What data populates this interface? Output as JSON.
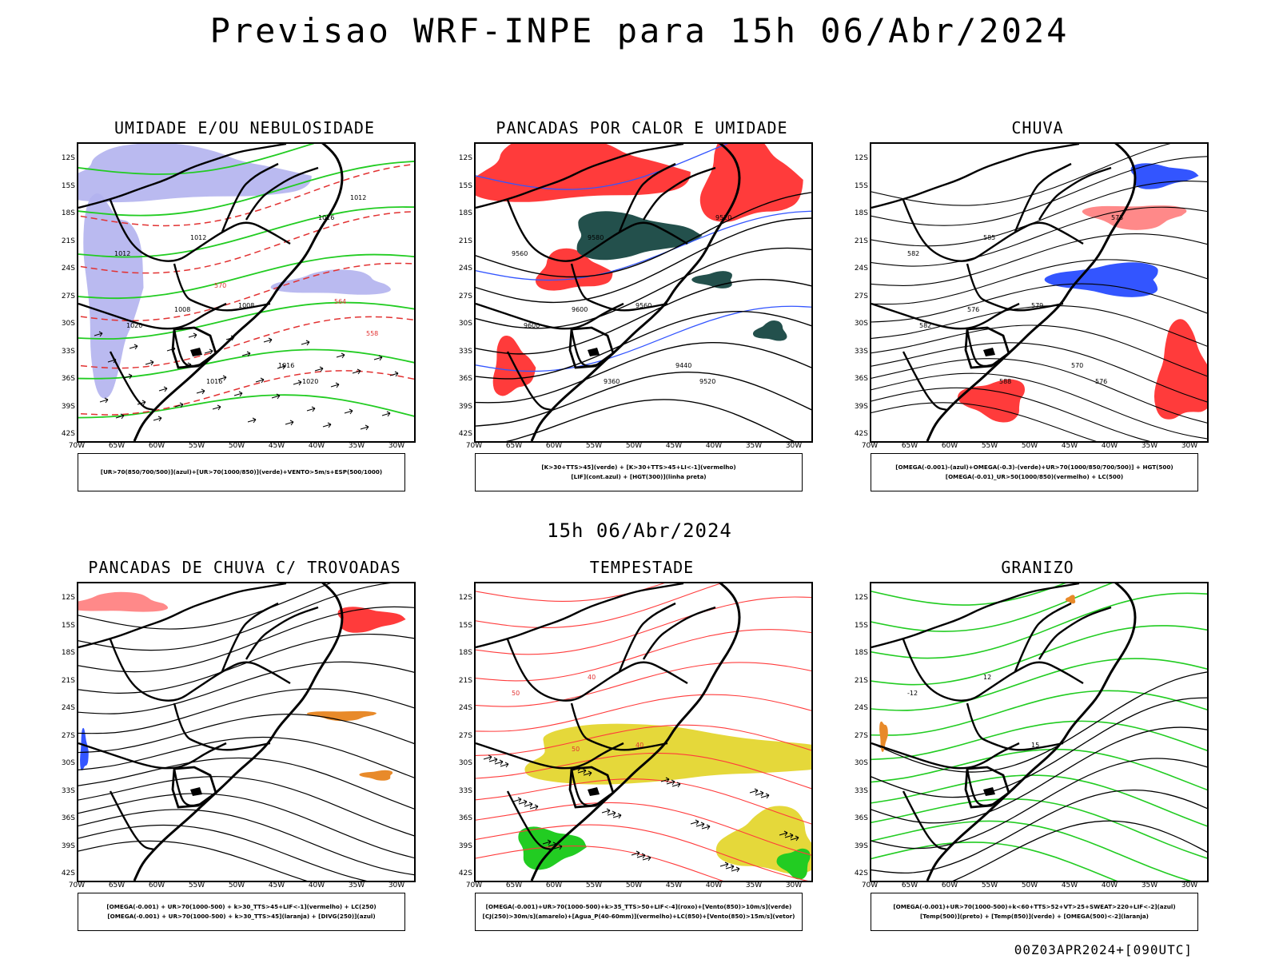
{
  "title": "Previsao WRF-INPE  para 15h 06/Abr/2024",
  "subtitle": "15h 06/Abr/2024",
  "footer": "00Z03APR2024+[090UTC]",
  "lat_labels": [
    "12S",
    "15S",
    "18S",
    "21S",
    "24S",
    "27S",
    "30S",
    "33S",
    "36S",
    "39S",
    "42S"
  ],
  "lon_labels": [
    "70W",
    "65W",
    "60W",
    "55W",
    "50W",
    "45W",
    "40W",
    "35W",
    "30W"
  ],
  "panels": [
    {
      "title": "UMIDADE E/OU NEBULOSIDADE",
      "legend": [
        "[UR>70(850/700/500)](azul)+[UR>70(1000/850)](verde)+VENTO>5m/s+ESP(500/1000)"
      ],
      "labels": [
        "1012",
        "1012",
        "1008",
        "1008",
        "1016",
        "1016",
        "1016",
        "1020",
        "1020",
        "1012",
        "570",
        "564",
        "558"
      ]
    },
    {
      "title": "PANCADAS POR CALOR E UMIDADE",
      "legend": [
        "[K>30+TTS>45](verde)  +  [K>30+TTS>45+LI<-1](vermelho)",
        "[LIF](cont.azul)  +  [HGT(300)](linha preta)"
      ],
      "labels": [
        "9560",
        "9580",
        "9560",
        "9600",
        "9520",
        "9440",
        "9360",
        "9520",
        "9600"
      ]
    },
    {
      "title": "CHUVA",
      "legend": [
        "[OMEGA(-0.001)-(azul)+OMEGA(-0.3)-(verde)+UR>70(1000/850/700/500)]  +  HGT(500)",
        "[OMEGA(-0.01)_UR>50(1000/850)(vermelho)  +  LC(500)"
      ],
      "labels": [
        "582",
        "585",
        "579",
        "576",
        "573",
        "570",
        "588",
        "576",
        "582"
      ]
    },
    {
      "title": "PANCADAS DE CHUVA C/ TROVOADAS",
      "legend": [
        "[OMEGA(-0.001)  +  UR>70(1000-500)  +  k>30_TTS>45+LIF<-1](vermelho)  +  LC(250)",
        "[OMEGA(-0.001)  +  UR>70(1000-500)  +  k>30_TTS>45](laranja)  +  [DIVG(250)](azul)"
      ],
      "labels": []
    },
    {
      "title": "TEMPESTADE",
      "legend": [
        "[OMEGA(-0.001)+UR>70(1000-500)+k>35_TTS>50+LIF<-4](roxo)+[Vento(850)>10m/s](verde)",
        "[CJ(250)>30m/s](amarelo)+[Agua_P(40-60mm)](vermelho)+LC(850)+[Vento(850)>15m/s](vetor)"
      ],
      "labels": [
        "50",
        "40",
        "40",
        "50"
      ]
    },
    {
      "title": "GRANIZO",
      "legend": [
        "[OMEGA(-0.001)+UR>70(1000-500)+k<60+TTS>52+VT>25+SWEAT>220+LIF<-2](azul)",
        "[Temp(500)](preto)  +  [Temp(850)](verde)  +  [OMEGA(500)<-2](laranja)"
      ],
      "labels": [
        "-12",
        "12",
        "15"
      ]
    }
  ],
  "colors": {
    "blue": "#3355ff",
    "green": "#22cc22",
    "red": "#ff3b3b",
    "darkteal": "#23504c",
    "yellow": "#e5d83a",
    "orange": "#e88a2a",
    "lavender": "#b3b3ee",
    "black": "#000000"
  }
}
